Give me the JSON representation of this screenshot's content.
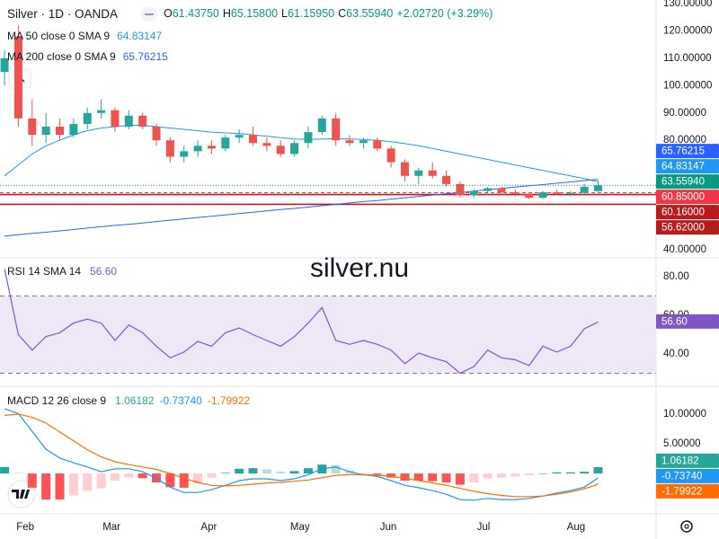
{
  "header": {
    "symbol": "Silver · 1D · OANDA",
    "fields": [
      {
        "key": "O",
        "value": "61.43750"
      },
      {
        "key": "H",
        "value": "65.15800"
      },
      {
        "key": "L",
        "value": "61.15950"
      },
      {
        "key": "C",
        "value": "63.55940"
      }
    ],
    "change": "+2.02720 (+3.29%)"
  },
  "watermark": "silver.nu",
  "chart_data": [
    {
      "type": "candlestick",
      "up_color": "#26a69a",
      "down_color": "#ef5350",
      "ohlc": [
        [
          105,
          113,
          100,
          110
        ],
        [
          118,
          122,
          85,
          88
        ],
        [
          88,
          95,
          78,
          82
        ],
        [
          82,
          90,
          79,
          85
        ],
        [
          85,
          88,
          80,
          82
        ],
        [
          82,
          88,
          81,
          86
        ],
        [
          86,
          92,
          84,
          90
        ],
        [
          90,
          95,
          88,
          91
        ],
        [
          91,
          92,
          83,
          85
        ],
        [
          85,
          91,
          84,
          89
        ],
        [
          89,
          90,
          84,
          85
        ],
        [
          85,
          86,
          78,
          80
        ],
        [
          80,
          81,
          72,
          74
        ],
        [
          74,
          78,
          72,
          76
        ],
        [
          76,
          80,
          74,
          78
        ],
        [
          78,
          80,
          75,
          77
        ],
        [
          77,
          82,
          76,
          81
        ],
        [
          81,
          84,
          79,
          82
        ],
        [
          82,
          85,
          78,
          79
        ],
        [
          79,
          81,
          76,
          78
        ],
        [
          78,
          80,
          74,
          75
        ],
        [
          75,
          80,
          74,
          79
        ],
        [
          79,
          85,
          77,
          83
        ],
        [
          83,
          89,
          82,
          88
        ],
        [
          88,
          90,
          78,
          80
        ],
        [
          80,
          82,
          78,
          79
        ],
        [
          79,
          81,
          77,
          80
        ],
        [
          80,
          81,
          76,
          77
        ],
        [
          77,
          78,
          70,
          72
        ],
        [
          72,
          73,
          65,
          67
        ],
        [
          67,
          70,
          64,
          69
        ],
        [
          69,
          72,
          66,
          67
        ],
        [
          67,
          69,
          63,
          64
        ],
        [
          64,
          65,
          59,
          60
        ],
        [
          60,
          62,
          59,
          61.5
        ],
        [
          61.5,
          63,
          60,
          62.5
        ],
        [
          62.5,
          63,
          60,
          61
        ],
        [
          61,
          62,
          59.5,
          60.5
        ],
        [
          60.5,
          61,
          58.5,
          59
        ],
        [
          59,
          61.5,
          58.5,
          61
        ],
        [
          61,
          62,
          60,
          60.5
        ],
        [
          60.5,
          61.5,
          59.5,
          60.8
        ],
        [
          60.8,
          64,
          60.5,
          63
        ],
        [
          61.4375,
          65.158,
          61.1595,
          63.5594
        ]
      ],
      "series": [
        {
          "name": "MA 50 close 0 SMA 9",
          "color": "#2196f3",
          "legend_value": "64.83147",
          "values": [
            67,
            71,
            75,
            78,
            80,
            82,
            83.5,
            84.5,
            85,
            85.5,
            85.5,
            85,
            84.5,
            84,
            83.5,
            83,
            82.7,
            82.5,
            82,
            81.5,
            81,
            80.5,
            80.3,
            80.5,
            80.6,
            80.5,
            80.3,
            80,
            79.5,
            78.8,
            78,
            77,
            76,
            75,
            74,
            73,
            72,
            71,
            70,
            69,
            68,
            67,
            66,
            64.83147
          ]
        },
        {
          "name": "MA 200 close 0 SMA 9",
          "color": "#2962ff",
          "legend_value": "65.76215",
          "values": [
            45,
            45.5,
            46,
            46.4,
            46.9,
            47.4,
            47.9,
            48.4,
            48.9,
            49.3,
            49.8,
            50.3,
            50.8,
            51.3,
            51.8,
            52.2,
            52.7,
            53.2,
            53.7,
            54.2,
            54.7,
            55.1,
            55.6,
            56.1,
            56.6,
            57.1,
            57.6,
            58,
            58.5,
            59,
            59.5,
            60,
            60.5,
            60.9,
            61.4,
            61.9,
            62.4,
            62.9,
            63.4,
            63.8,
            64.3,
            64.8,
            65.3,
            65.76215
          ]
        }
      ],
      "last_color": "#089981",
      "price_lines": [
        {
          "value": 60.85,
          "label": "60.85000",
          "color": "#f23645",
          "dashed": true
        },
        {
          "value": 60.16,
          "label": "60.16000",
          "color": "#b71c1c",
          "dashed": false
        },
        {
          "value": 56.62,
          "label": "56.62000",
          "color": "#b71c1c",
          "dashed": false
        }
      ],
      "ylim": [
        37.7,
        131.3
      ],
      "yticks": [
        {
          "value": 130,
          "label": "130.00000"
        },
        {
          "value": 120,
          "label": "120.00000"
        },
        {
          "value": 110,
          "label": "110.00000"
        },
        {
          "value": 100,
          "label": "100.00000"
        },
        {
          "value": 90,
          "label": "90.00000"
        },
        {
          "value": 80,
          "label": "80.00000"
        },
        {
          "value": 40,
          "label": "40.00000"
        }
      ]
    },
    {
      "type": "line",
      "title": "RSI 14 SMA 14",
      "legend_value": "56.60",
      "color": "#7e57c2",
      "band": [
        30,
        70
      ],
      "band_color": "#ede7f6",
      "values": [
        84,
        50,
        42,
        49,
        51,
        56,
        58,
        56,
        47,
        55,
        51,
        44,
        38,
        41,
        46.5,
        44,
        51,
        53.5,
        50,
        47,
        44,
        49,
        56,
        64,
        47,
        45,
        47,
        45,
        42,
        35,
        40.5,
        38,
        36,
        30,
        33.5,
        42,
        38,
        37,
        34,
        44,
        41,
        44,
        53,
        56.6
      ],
      "ylim": [
        24.2,
        88.4
      ],
      "yticks": [
        {
          "value": 80,
          "label": "80.00"
        },
        {
          "value": 60,
          "label": "60.00"
        },
        {
          "value": 40,
          "label": "40.00"
        }
      ]
    },
    {
      "type": "macd",
      "title": "MACD 12 26 close 9",
      "histogram": {
        "colors": [
          "#26a69a",
          "#b2dfdb",
          "#ff5252",
          "#ffcdd2"
        ],
        "legend_value": "1.06182",
        "values": [
          1.1,
          0.1,
          -2.4,
          -4.4,
          -4.4,
          -3.7,
          -2.9,
          -2.5,
          -1.2,
          -0.7,
          -0.8,
          -1.5,
          -2.3,
          -2.4,
          -1.7,
          -0.7,
          0.1,
          0.8,
          0.9,
          0.7,
          0.3,
          0.4,
          0.9,
          1.5,
          1.4,
          0.5,
          0,
          -0.2,
          -0.7,
          -1.2,
          -1.2,
          -1.3,
          -1.5,
          -1.9,
          -1.5,
          -0.8,
          -0.7,
          -0.5,
          -0.3,
          0,
          0.2,
          0.2,
          0.3,
          1.06182
        ]
      },
      "series": [
        {
          "color": "#2196f3",
          "legend_value": "-0.73740",
          "values": [
            10.9,
            10.1,
            7.1,
            4.1,
            2.6,
            1.8,
            1.1,
            0.3,
            0.8,
            0.8,
            0.3,
            -0.8,
            -2.3,
            -3.2,
            -3.2,
            -2.7,
            -2,
            -1.2,
            -0.9,
            -0.9,
            -1.2,
            -0.9,
            -0.2,
            0.8,
            1.1,
            0.3,
            -0.2,
            -0.5,
            -1.2,
            -2,
            -2.4,
            -2.9,
            -3.5,
            -4.4,
            -4.5,
            -4.2,
            -4.4,
            -4.4,
            -4.2,
            -3.8,
            -3.3,
            -2.9,
            -2.3,
            -0.7374
          ]
        },
        {
          "color": "#ff6d00",
          "legend_value": "-1.79922",
          "values": [
            9.8,
            10,
            9.5,
            8.5,
            7,
            5.5,
            4,
            2.8,
            2,
            1.5,
            1.1,
            0.7,
            0,
            -0.8,
            -1.5,
            -2,
            -2.1,
            -2,
            -1.8,
            -1.6,
            -1.5,
            -1.3,
            -1.1,
            -0.7,
            -0.3,
            -0.2,
            -0.2,
            -0.3,
            -0.5,
            -0.8,
            -1.2,
            -1.6,
            -2,
            -2.5,
            -3,
            -3.4,
            -3.7,
            -3.9,
            -3.9,
            -3.8,
            -3.5,
            -3.1,
            -2.6,
            -1.79922
          ]
        }
      ],
      "ylim": [
        -6.5,
        14.4
      ],
      "yticks": [
        {
          "value": 10,
          "label": "10.00000"
        },
        {
          "value": 5,
          "label": "5.00000"
        }
      ],
      "xlim": [
        -0.33,
        47.2
      ],
      "xticks": [
        {
          "value": 1.5,
          "label": "Feb"
        },
        {
          "value": 7.75,
          "label": "Mar"
        },
        {
          "value": 14.8,
          "label": "Apr"
        },
        {
          "value": 21.4,
          "label": "May"
        },
        {
          "value": 27.8,
          "label": "Jun"
        },
        {
          "value": 34.7,
          "label": "Jul"
        },
        {
          "value": 41.4,
          "label": "Aug"
        }
      ]
    }
  ]
}
